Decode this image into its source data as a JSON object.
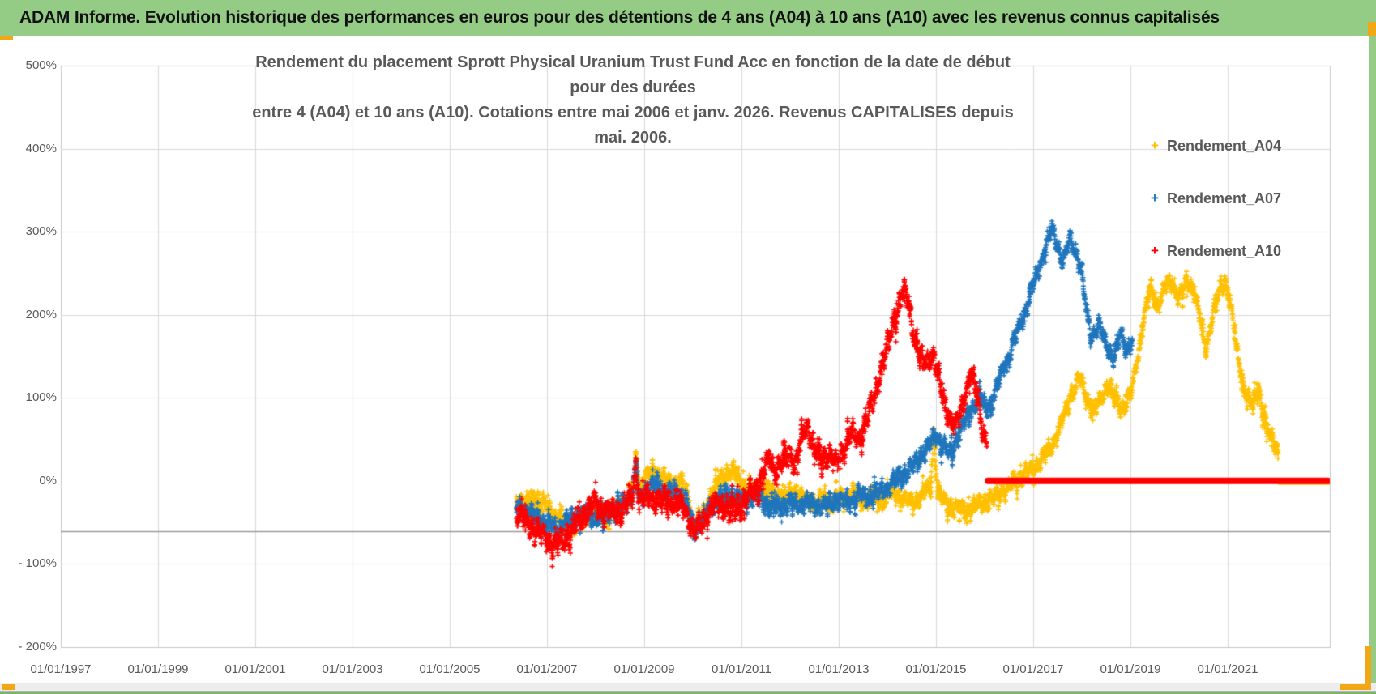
{
  "header": {
    "title": "ADAM Informe. Evolution historique des performances en euros pour des détentions de 4 ans (A04) à 10 ans (A10) avec les revenus connus capitalisés"
  },
  "colors": {
    "header_green": "#94cb85",
    "accent_orange": "#f2a716",
    "grid": "#d9d9d9",
    "plot_border": "#c8c8c8",
    "dark_axis_line": "#9c9c9c",
    "text_gray": "#595959",
    "series_a04": "#FFC000",
    "series_a07": "#2076BC",
    "series_a10": "#FF0000"
  },
  "chart_data": {
    "type": "scatter",
    "title_line1": "Rendement du placement Sprott Physical Uranium Trust Fund Acc en fonction de la date de début pour des durées",
    "title_line2": "entre 4 (A04) et 10 ans (A10).  Cotations entre mai 2006 et janv. 2026. Revenus CAPITALISES depuis mai. 2006.",
    "marker": "plus",
    "grid": true,
    "x_axis": {
      "range_years": [
        1997.0,
        2023.1
      ],
      "ticks": [
        {
          "year": 1997,
          "label": "01/01/1997"
        },
        {
          "year": 1999,
          "label": "01/01/1999"
        },
        {
          "year": 2001,
          "label": "01/01/2001"
        },
        {
          "year": 2003,
          "label": "01/01/2003"
        },
        {
          "year": 2005,
          "label": "01/01/2005"
        },
        {
          "year": 2007,
          "label": "01/01/2007"
        },
        {
          "year": 2009,
          "label": "01/01/2009"
        },
        {
          "year": 2011,
          "label": "01/01/2011"
        },
        {
          "year": 2013,
          "label": "01/01/2013"
        },
        {
          "year": 2015,
          "label": "01/01/2015"
        },
        {
          "year": 2017,
          "label": "01/01/2017"
        },
        {
          "year": 2019,
          "label": "01/01/2019"
        },
        {
          "year": 2021,
          "label": "01/01/2021"
        }
      ]
    },
    "y_axis": {
      "range_pct": [
        -200,
        500
      ],
      "ticks": [
        {
          "value": 500,
          "label": "500%",
          "grid": true
        },
        {
          "value": 400,
          "label": "400%",
          "grid": true
        },
        {
          "value": 300,
          "label": "300%",
          "grid": true
        },
        {
          "value": 200,
          "label": "200%",
          "grid": true
        },
        {
          "value": 100,
          "label": "100%",
          "grid": true
        },
        {
          "value": 0,
          "label": "0%",
          "grid": false
        },
        {
          "value": -100,
          "label": "- 100%",
          "grid": true
        },
        {
          "value": -200,
          "label": "- 200%",
          "grid": true
        }
      ],
      "dark_axis_line_at_pct": -61
    },
    "legend": {
      "position": "right-top",
      "entries": [
        {
          "label": "Rendement_A04",
          "color": "#FFC000"
        },
        {
          "label": "Rendement_A07",
          "color": "#2076BC"
        },
        {
          "label": "Rendement_A10",
          "color": "#FF0000"
        }
      ]
    },
    "series": [
      {
        "name": "Rendement_A04",
        "color": "#FFC000",
        "seed": 11,
        "spread": 8,
        "wiggle": 9,
        "zero_tail_from": 2022.06,
        "points": [
          [
            2006.37,
            -20
          ],
          [
            2006.55,
            -28
          ],
          [
            2006.75,
            -20
          ],
          [
            2006.95,
            -28
          ],
          [
            2007.1,
            -36
          ],
          [
            2007.3,
            -48
          ],
          [
            2007.55,
            -57
          ],
          [
            2007.7,
            -46
          ],
          [
            2007.9,
            -38
          ],
          [
            2008.1,
            -44
          ],
          [
            2008.35,
            -38
          ],
          [
            2008.6,
            -26
          ],
          [
            2008.78,
            -8
          ],
          [
            2008.83,
            32
          ],
          [
            2008.9,
            -8
          ],
          [
            2009.05,
            6
          ],
          [
            2009.2,
            14
          ],
          [
            2009.4,
            2
          ],
          [
            2009.6,
            -6
          ],
          [
            2009.75,
            0
          ],
          [
            2009.9,
            -20
          ],
          [
            2010.02,
            -58
          ],
          [
            2010.1,
            -52
          ],
          [
            2010.25,
            -38
          ],
          [
            2010.4,
            -12
          ],
          [
            2010.55,
            0
          ],
          [
            2010.7,
            10
          ],
          [
            2010.85,
            10
          ],
          [
            2011.0,
            -4
          ],
          [
            2011.15,
            -10
          ],
          [
            2011.3,
            -16
          ],
          [
            2011.5,
            -8
          ],
          [
            2011.7,
            -16
          ],
          [
            2011.9,
            -20
          ],
          [
            2012.1,
            -12
          ],
          [
            2012.3,
            -22
          ],
          [
            2012.5,
            -28
          ],
          [
            2012.7,
            -20
          ],
          [
            2012.9,
            -26
          ],
          [
            2013.1,
            -20
          ],
          [
            2013.3,
            -15
          ],
          [
            2013.5,
            -24
          ],
          [
            2013.7,
            -18
          ],
          [
            2013.9,
            -22
          ],
          [
            2014.1,
            -14
          ],
          [
            2014.3,
            -20
          ],
          [
            2014.5,
            -25
          ],
          [
            2014.7,
            -18
          ],
          [
            2014.88,
            -8
          ],
          [
            2014.96,
            55
          ],
          [
            2015.04,
            -16
          ],
          [
            2015.2,
            -28
          ],
          [
            2015.4,
            -32
          ],
          [
            2015.6,
            -38
          ],
          [
            2015.8,
            -30
          ],
          [
            2016.0,
            -24
          ],
          [
            2016.2,
            -20
          ],
          [
            2016.4,
            -12
          ],
          [
            2016.6,
            -2
          ],
          [
            2016.8,
            8
          ],
          [
            2017.0,
            14
          ],
          [
            2017.2,
            28
          ],
          [
            2017.4,
            45
          ],
          [
            2017.6,
            72
          ],
          [
            2017.8,
            108
          ],
          [
            2017.95,
            125
          ],
          [
            2018.1,
            100
          ],
          [
            2018.25,
            85
          ],
          [
            2018.4,
            100
          ],
          [
            2018.55,
            118
          ],
          [
            2018.7,
            95
          ],
          [
            2018.85,
            88
          ],
          [
            2019.0,
            105
          ],
          [
            2019.1,
            130
          ],
          [
            2019.25,
            190
          ],
          [
            2019.4,
            232
          ],
          [
            2019.55,
            212
          ],
          [
            2019.7,
            232
          ],
          [
            2019.85,
            240
          ],
          [
            2020.0,
            222
          ],
          [
            2020.15,
            238
          ],
          [
            2020.3,
            232
          ],
          [
            2020.45,
            190
          ],
          [
            2020.55,
            158
          ],
          [
            2020.7,
            205
          ],
          [
            2020.85,
            232
          ],
          [
            2020.95,
            240
          ],
          [
            2021.05,
            218
          ],
          [
            2021.2,
            150
          ],
          [
            2021.35,
            110
          ],
          [
            2021.5,
            92
          ],
          [
            2021.65,
            108
          ],
          [
            2021.8,
            62
          ],
          [
            2021.95,
            45
          ],
          [
            2022.04,
            35
          ]
        ]
      },
      {
        "name": "Rendement_A07",
        "color": "#2076BC",
        "seed": 22,
        "spread": 8,
        "wiggle": 9,
        "zero_tail_from": 2019.06,
        "points": [
          [
            2006.37,
            -28
          ],
          [
            2006.6,
            -36
          ],
          [
            2006.8,
            -45
          ],
          [
            2007.0,
            -52
          ],
          [
            2007.2,
            -58
          ],
          [
            2007.35,
            -52
          ],
          [
            2007.5,
            -46
          ],
          [
            2007.7,
            -40
          ],
          [
            2007.9,
            -44
          ],
          [
            2008.1,
            -46
          ],
          [
            2008.3,
            -36
          ],
          [
            2008.55,
            -30
          ],
          [
            2008.75,
            -16
          ],
          [
            2008.83,
            18
          ],
          [
            2008.9,
            -22
          ],
          [
            2009.05,
            -12
          ],
          [
            2009.25,
            -6
          ],
          [
            2009.45,
            -14
          ],
          [
            2009.65,
            -12
          ],
          [
            2009.85,
            -24
          ],
          [
            2010.02,
            -58
          ],
          [
            2010.12,
            -52
          ],
          [
            2010.25,
            -42
          ],
          [
            2010.4,
            -28
          ],
          [
            2010.6,
            -20
          ],
          [
            2010.8,
            -16
          ],
          [
            2011.0,
            -24
          ],
          [
            2011.2,
            -18
          ],
          [
            2011.4,
            -22
          ],
          [
            2011.6,
            -28
          ],
          [
            2011.8,
            -32
          ],
          [
            2012.0,
            -26
          ],
          [
            2012.2,
            -30
          ],
          [
            2012.4,
            -26
          ],
          [
            2012.6,
            -30
          ],
          [
            2012.8,
            -28
          ],
          [
            2013.0,
            -22
          ],
          [
            2013.2,
            -26
          ],
          [
            2013.4,
            -16
          ],
          [
            2013.6,
            -20
          ],
          [
            2013.8,
            -14
          ],
          [
            2014.0,
            -8
          ],
          [
            2014.2,
            2
          ],
          [
            2014.4,
            12
          ],
          [
            2014.6,
            22
          ],
          [
            2014.8,
            38
          ],
          [
            2015.0,
            55
          ],
          [
            2015.15,
            42
          ],
          [
            2015.3,
            32
          ],
          [
            2015.45,
            55
          ],
          [
            2015.6,
            72
          ],
          [
            2015.75,
            88
          ],
          [
            2015.9,
            102
          ],
          [
            2016.05,
            85
          ],
          [
            2016.2,
            105
          ],
          [
            2016.35,
            130
          ],
          [
            2016.5,
            152
          ],
          [
            2016.65,
            175
          ],
          [
            2016.8,
            198
          ],
          [
            2016.95,
            228
          ],
          [
            2017.1,
            252
          ],
          [
            2017.25,
            282
          ],
          [
            2017.38,
            302
          ],
          [
            2017.5,
            285
          ],
          [
            2017.6,
            265
          ],
          [
            2017.75,
            288
          ],
          [
            2017.88,
            278
          ],
          [
            2018.0,
            252
          ],
          [
            2018.1,
            200
          ],
          [
            2018.2,
            172
          ],
          [
            2018.35,
            188
          ],
          [
            2018.5,
            162
          ],
          [
            2018.65,
            150
          ],
          [
            2018.8,
            175
          ],
          [
            2018.92,
            158
          ],
          [
            2019.04,
            172
          ]
        ]
      },
      {
        "name": "Rendement_A10",
        "color": "#FF0000",
        "seed": 33,
        "spread": 10,
        "wiggle": 12,
        "zero_tail_from": 2016.07,
        "points": [
          [
            2006.37,
            -38
          ],
          [
            2006.55,
            -48
          ],
          [
            2006.75,
            -58
          ],
          [
            2006.95,
            -68
          ],
          [
            2007.15,
            -78
          ],
          [
            2007.3,
            -72
          ],
          [
            2007.45,
            -64
          ],
          [
            2007.6,
            -52
          ],
          [
            2007.75,
            -40
          ],
          [
            2007.95,
            -28
          ],
          [
            2008.15,
            -33
          ],
          [
            2008.35,
            -38
          ],
          [
            2008.55,
            -34
          ],
          [
            2008.75,
            -20
          ],
          [
            2008.83,
            20
          ],
          [
            2008.9,
            -26
          ],
          [
            2009.1,
            -18
          ],
          [
            2009.3,
            -26
          ],
          [
            2009.5,
            -22
          ],
          [
            2009.7,
            -28
          ],
          [
            2009.85,
            -36
          ],
          [
            2010.02,
            -62
          ],
          [
            2010.12,
            -55
          ],
          [
            2010.25,
            -45
          ],
          [
            2010.4,
            -32
          ],
          [
            2010.6,
            -28
          ],
          [
            2010.8,
            -36
          ],
          [
            2011.0,
            -30
          ],
          [
            2011.15,
            -16
          ],
          [
            2011.3,
            -5
          ],
          [
            2011.45,
            8
          ],
          [
            2011.58,
            28
          ],
          [
            2011.7,
            12
          ],
          [
            2011.85,
            22
          ],
          [
            2012.0,
            32
          ],
          [
            2012.1,
            18
          ],
          [
            2012.25,
            52
          ],
          [
            2012.35,
            68
          ],
          [
            2012.5,
            38
          ],
          [
            2012.65,
            25
          ],
          [
            2012.8,
            35
          ],
          [
            2012.95,
            18
          ],
          [
            2013.1,
            40
          ],
          [
            2013.25,
            58
          ],
          [
            2013.4,
            48
          ],
          [
            2013.55,
            68
          ],
          [
            2013.7,
            95
          ],
          [
            2013.85,
            130
          ],
          [
            2014.0,
            162
          ],
          [
            2014.1,
            185
          ],
          [
            2014.2,
            205
          ],
          [
            2014.33,
            228
          ],
          [
            2014.45,
            212
          ],
          [
            2014.55,
            175
          ],
          [
            2014.65,
            150
          ],
          [
            2014.8,
            145
          ],
          [
            2014.95,
            152
          ],
          [
            2015.1,
            110
          ],
          [
            2015.25,
            80
          ],
          [
            2015.4,
            62
          ],
          [
            2015.55,
            95
          ],
          [
            2015.7,
            128
          ],
          [
            2015.85,
            108
          ],
          [
            2015.95,
            62
          ],
          [
            2016.05,
            45
          ]
        ]
      }
    ],
    "zero_tail_to": 2023.06,
    "zero_tail_value": 0
  }
}
